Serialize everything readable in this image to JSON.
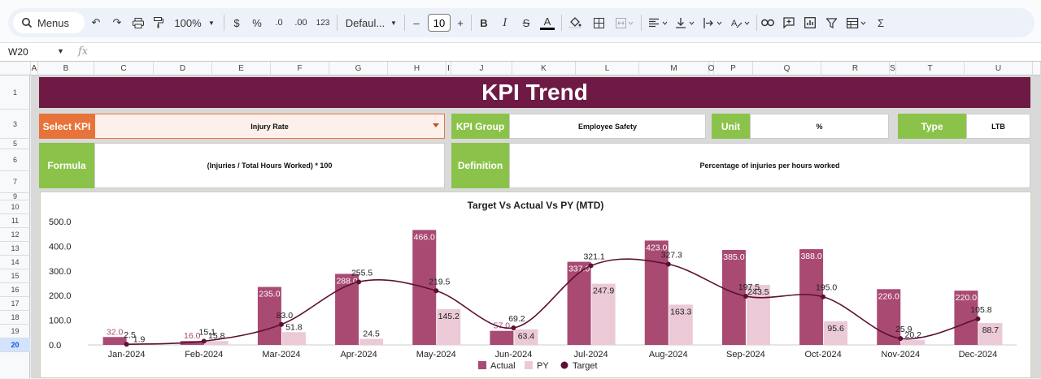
{
  "toolbar": {
    "search_label": "Menus",
    "zoom": "100%",
    "currency": "$",
    "percent": "%",
    "dec_decrease": ".0",
    "dec_increase": ".00",
    "number_format": "123",
    "font_name": "Defaul...",
    "font_size": "10",
    "bold": "B",
    "italic": "I",
    "sigma": "Σ"
  },
  "formula_bar": {
    "cell_ref": "W20",
    "fx": "fx"
  },
  "columns": [
    "A",
    "B",
    "C",
    "D",
    "E",
    "F",
    "G",
    "H",
    "I",
    "J",
    "K",
    "L",
    "M",
    "O",
    "P",
    "Q",
    "R",
    "S",
    "T",
    "U"
  ],
  "rows": [
    "1",
    "3",
    "5",
    "6",
    "7",
    "9",
    "10",
    "11",
    "12",
    "13",
    "14",
    "15",
    "16",
    "17",
    "18",
    "19",
    "20"
  ],
  "active_row": "20",
  "dashboard": {
    "title": "KPI Trend",
    "select_kpi_label": "Select KPI",
    "select_kpi_value": "Injury Rate",
    "kpi_group_label": "KPI Group",
    "kpi_group_value": "Employee Safety",
    "unit_label": "Unit",
    "unit_value": "%",
    "type_label": "Type",
    "type_value": "LTB",
    "formula_label": "Formula",
    "formula_value": "(Injuries / Total Hours Worked) * 100",
    "definition_label": "Definition",
    "definition_value": "Percentage of injuries per hours worked"
  },
  "colors": {
    "actual": "#a84a72",
    "py": "#ebc9d6",
    "target": "#5c1034",
    "banner": "#6e1a45",
    "green": "#8bc34a",
    "orange": "#e8733a"
  },
  "chart_data": {
    "type": "bar",
    "title": "Target Vs Actual Vs PY (MTD)",
    "categories": [
      "Jan-2024",
      "Feb-2024",
      "Mar-2024",
      "Apr-2024",
      "May-2024",
      "Jun-2024",
      "Jul-2024",
      "Aug-2024",
      "Sep-2024",
      "Oct-2024",
      "Nov-2024",
      "Dec-2024"
    ],
    "series": [
      {
        "name": "Actual",
        "kind": "bar",
        "values": [
          32.0,
          16.0,
          235.0,
          288.0,
          466.0,
          57.0,
          337.0,
          423.0,
          385.0,
          388.0,
          226.0,
          220.0
        ]
      },
      {
        "name": "PY",
        "kind": "bar",
        "values": [
          1.9,
          15.8,
          51.8,
          24.5,
          145.2,
          63.4,
          247.9,
          163.3,
          243.5,
          95.6,
          20.2,
          88.7
        ]
      },
      {
        "name": "Target",
        "kind": "line",
        "values": [
          2.5,
          15.1,
          83.0,
          255.5,
          219.5,
          69.2,
          321.1,
          327.3,
          197.5,
          195.0,
          25.9,
          105.8
        ]
      }
    ],
    "yticks": [
      "0.0",
      "100.0",
      "200.0",
      "300.0",
      "400.0",
      "500.0"
    ],
    "ylim": [
      0,
      500
    ],
    "legend": [
      "Actual",
      "PY",
      "Target"
    ],
    "legend_position": "bottom"
  }
}
